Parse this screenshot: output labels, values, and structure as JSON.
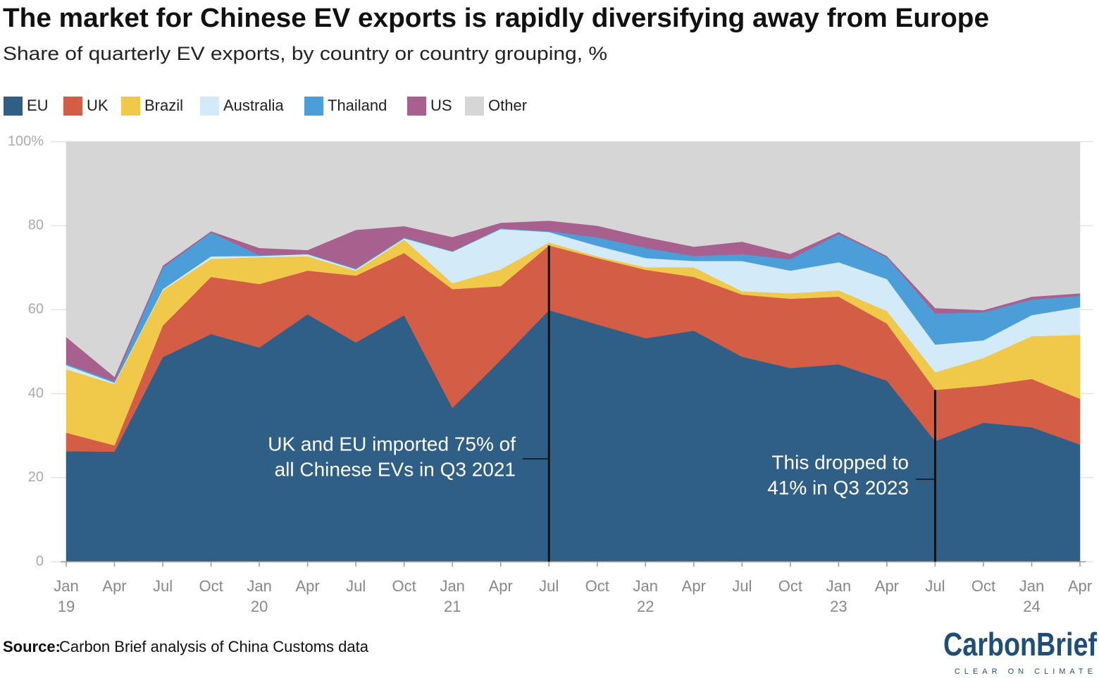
{
  "chart_data": {
    "type": "stacked_area",
    "title": "The market for Chinese EV exports is rapidly diversifying away from Europe",
    "subtitle": "Share of quarterly EV exports, by country or country grouping, %",
    "categories": [
      "Jan",
      "Apr",
      "Jul",
      "Oct",
      "Jan",
      "Apr",
      "Jul",
      "Oct",
      "Jan",
      "Apr",
      "Jul",
      "Oct",
      "Jan",
      "Apr",
      "Jul",
      "Oct",
      "Jan",
      "Apr",
      "Jul",
      "Oct",
      "Jan",
      "Apr"
    ],
    "category_years": [
      "19",
      null,
      null,
      null,
      "20",
      null,
      null,
      null,
      "21",
      null,
      null,
      null,
      "22",
      null,
      null,
      null,
      "23",
      null,
      null,
      null,
      "24",
      null
    ],
    "series": [
      {
        "name": "EU",
        "color": "#2f5f87",
        "values": [
          26.3,
          26.2,
          48.7,
          54.2,
          51,
          58.9,
          52.2,
          58.7,
          36.6,
          48,
          59.9,
          56.5,
          53.2,
          55,
          48.8,
          46.1,
          47,
          43.1,
          28.7,
          33.1,
          32,
          27.9
        ]
      },
      {
        "name": "UK",
        "color": "#d35e45",
        "values": [
          4.4,
          1.5,
          7.5,
          13.6,
          15.1,
          10.4,
          15.9,
          14.8,
          28.3,
          17.6,
          15.4,
          15.8,
          16.3,
          12.8,
          14.8,
          16.5,
          16.1,
          13.6,
          12.2,
          8.8,
          11.5,
          10.9
        ]
      },
      {
        "name": "Brazil",
        "color": "#f0c84a",
        "values": [
          15.1,
          14.6,
          8.4,
          4.3,
          6.4,
          3.4,
          1.2,
          3.2,
          1.4,
          4,
          0.7,
          0.4,
          0.6,
          2.3,
          0.8,
          1.3,
          1.5,
          3,
          4.2,
          6.6,
          10.2,
          15.2
        ]
      },
      {
        "name": "Australia",
        "color": "#d3eaf9",
        "values": [
          1,
          0.3,
          0.3,
          0.6,
          0.3,
          0.5,
          0.3,
          0.3,
          7.5,
          9.6,
          2.5,
          2.5,
          2.2,
          1.5,
          7.2,
          5.4,
          6.7,
          7.6,
          6.6,
          4.2,
          5,
          6.6
        ]
      },
      {
        "name": "Thailand",
        "color": "#4b9ed8",
        "values": [
          0.3,
          0.4,
          5.1,
          5.7,
          0.2,
          0.1,
          0.2,
          0.2,
          0.1,
          0.2,
          0.2,
          2,
          2.4,
          1.2,
          1.6,
          2.7,
          6.7,
          5.2,
          7.4,
          6.7,
          3.7,
          2.7
        ]
      },
      {
        "name": "US",
        "color": "#a8618f",
        "values": [
          6.4,
          1,
          0.5,
          0.3,
          1.7,
          0.9,
          9.2,
          2.7,
          3.4,
          1.3,
          2.5,
          2.8,
          2.6,
          2.2,
          3,
          1.3,
          0.5,
          0.3,
          1.3,
          0.5,
          0.7,
          0.6
        ]
      },
      {
        "name": "Other",
        "color": "#d6d6d6",
        "values": [
          46.5,
          56,
          29.5,
          21.3,
          25.3,
          25.8,
          21,
          20.1,
          22.7,
          19.3,
          18.8,
          20,
          22.7,
          25,
          23.8,
          26.7,
          21.5,
          27.2,
          39.6,
          40.1,
          36.9,
          36.1
        ]
      }
    ],
    "ylim": [
      0,
      100
    ],
    "yticks": [
      0,
      20,
      40,
      60,
      80,
      {
        "value": 100,
        "label": "100%"
      }
    ],
    "grid": true,
    "annotations": [
      {
        "lines": [
          "UK and EU imported 75% of",
          "all Chinese EVs in Q3 2021"
        ]
      },
      {
        "lines": [
          "This dropped to",
          "41% in Q3 2023"
        ]
      }
    ],
    "source_label": "Source:",
    "source": "Carbon Brief analysis of China Customs data",
    "logo": {
      "text": "CarbonBrief",
      "tagline": "CLEAR ON CLIMATE"
    }
  }
}
